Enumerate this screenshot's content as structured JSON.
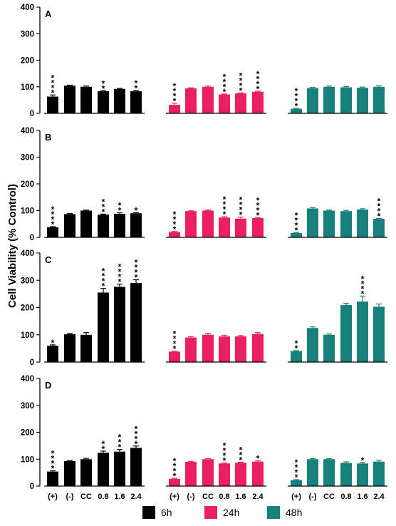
{
  "chart_data": {
    "type": "bar",
    "ylabel": "Cell Viability (% Control)",
    "ylim": [
      0,
      400
    ],
    "yticks": [
      0,
      100,
      200,
      300,
      400
    ],
    "categories": [
      "(+)",
      "(-)",
      "CC",
      "0.8",
      "1.6",
      "2.4"
    ],
    "series_names": [
      "6h",
      "24h",
      "48h"
    ],
    "colors": {
      "6h": "#000000",
      "24h": "#e91e63",
      "48h": "#17807a"
    },
    "legend": {
      "position": "bottom",
      "items": [
        {
          "label": "6h",
          "color": "#000000"
        },
        {
          "label": "24h",
          "color": "#e91e63"
        },
        {
          "label": "48h",
          "color": "#17807a"
        }
      ]
    },
    "panels": [
      {
        "label": "A",
        "series": [
          {
            "name": "6h",
            "values": [
              63,
              104,
              100,
              83,
              92,
              83
            ],
            "errors": [
              6,
              2,
              3,
              2,
              2,
              3
            ],
            "significance": [
              "****",
              "",
              "",
              "**",
              "",
              "**"
            ]
          },
          {
            "name": "24h",
            "values": [
              32,
              94,
              100,
              71,
              75,
              81
            ],
            "errors": [
              6,
              2,
              3,
              2,
              2,
              2
            ],
            "significance": [
              "****",
              "",
              "",
              "****",
              "****",
              "****"
            ]
          },
          {
            "name": "48h",
            "values": [
              17,
              95,
              100,
              98,
              96,
              100
            ],
            "errors": [
              2,
              3,
              3,
              3,
              3,
              4
            ],
            "significance": [
              "****",
              "",
              "",
              "",
              "",
              ""
            ]
          }
        ]
      },
      {
        "label": "B",
        "series": [
          {
            "name": "6h",
            "values": [
              38,
              87,
              100,
              85,
              88,
              90
            ],
            "errors": [
              2,
              2,
              2,
              2,
              4,
              2
            ],
            "significance": [
              "****",
              "",
              "",
              "***",
              "**",
              "*"
            ]
          },
          {
            "name": "24h",
            "values": [
              20,
              98,
              100,
              74,
              70,
              72
            ],
            "errors": [
              2,
              1,
              2,
              3,
              6,
              2
            ],
            "significance": [
              "****",
              "",
              "",
              "****",
              "****",
              "****"
            ]
          },
          {
            "name": "48h",
            "values": [
              16,
              108,
              100,
              98,
              104,
              69
            ],
            "errors": [
              2,
              3,
              2,
              3,
              3,
              2
            ],
            "significance": [
              "****",
              "",
              "",
              "",
              "",
              "****"
            ]
          }
        ]
      },
      {
        "label": "C",
        "series": [
          {
            "name": "6h",
            "values": [
              60,
              102,
              100,
              255,
              276,
              290
            ],
            "errors": [
              3,
              3,
              8,
              15,
              10,
              12
            ],
            "significance": [
              "*",
              "",
              "",
              "****",
              "****",
              "****"
            ]
          },
          {
            "name": "24h",
            "values": [
              38,
              90,
              100,
              94,
              94,
              103
            ],
            "errors": [
              2,
              3,
              5,
              4,
              3,
              5
            ],
            "significance": [
              "****",
              "",
              "",
              "",
              "",
              ""
            ]
          },
          {
            "name": "48h",
            "values": [
              40,
              125,
              100,
              209,
              222,
              203
            ],
            "errors": [
              2,
              4,
              3,
              6,
              20,
              10
            ],
            "significance": [
              "**",
              "",
              "",
              "",
              "****",
              ""
            ]
          }
        ]
      },
      {
        "label": "D",
        "series": [
          {
            "name": "6h",
            "values": [
              54,
              93,
              100,
              124,
              128,
              142
            ],
            "errors": [
              3,
              2,
              3,
              6,
              8,
              7
            ],
            "significance": [
              "****",
              "",
              "",
              "**",
              "***",
              "****"
            ]
          },
          {
            "name": "24h",
            "values": [
              27,
              90,
              100,
              84,
              87,
              91
            ],
            "errors": [
              2,
              2,
              2,
              2,
              2,
              3
            ],
            "significance": [
              "****",
              "",
              "",
              "****",
              "***",
              "*"
            ]
          },
          {
            "name": "48h",
            "values": [
              22,
              100,
              100,
              86,
              84,
              91
            ],
            "errors": [
              2,
              2,
              2,
              4,
              4,
              5
            ],
            "significance": [
              "****",
              "",
              "",
              "",
              "*",
              ""
            ]
          }
        ]
      }
    ]
  }
}
